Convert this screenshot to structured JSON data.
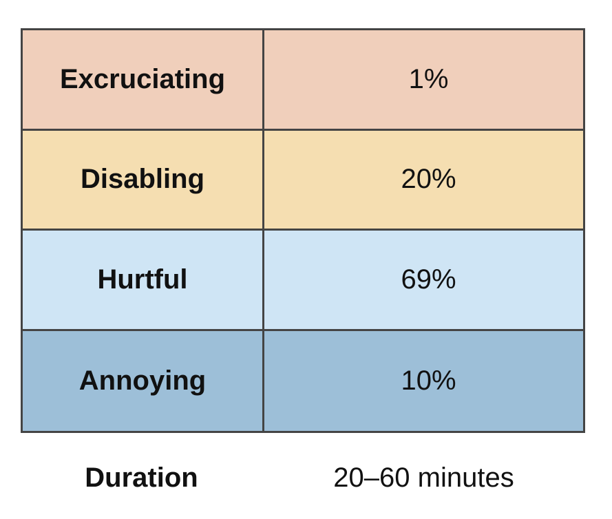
{
  "rows": [
    {
      "label": "Excruciating",
      "value": "1%",
      "color": "#f0cfbb"
    },
    {
      "label": "Disabling",
      "value": "20%",
      "color": "#f5deb1"
    },
    {
      "label": "Hurtful",
      "value": "69%",
      "color": "#cfe5f5"
    },
    {
      "label": "Annoying",
      "value": "10%",
      "color": "#9dbfd8"
    }
  ],
  "footer": {
    "label": "Duration",
    "value": "20–60 minutes"
  }
}
